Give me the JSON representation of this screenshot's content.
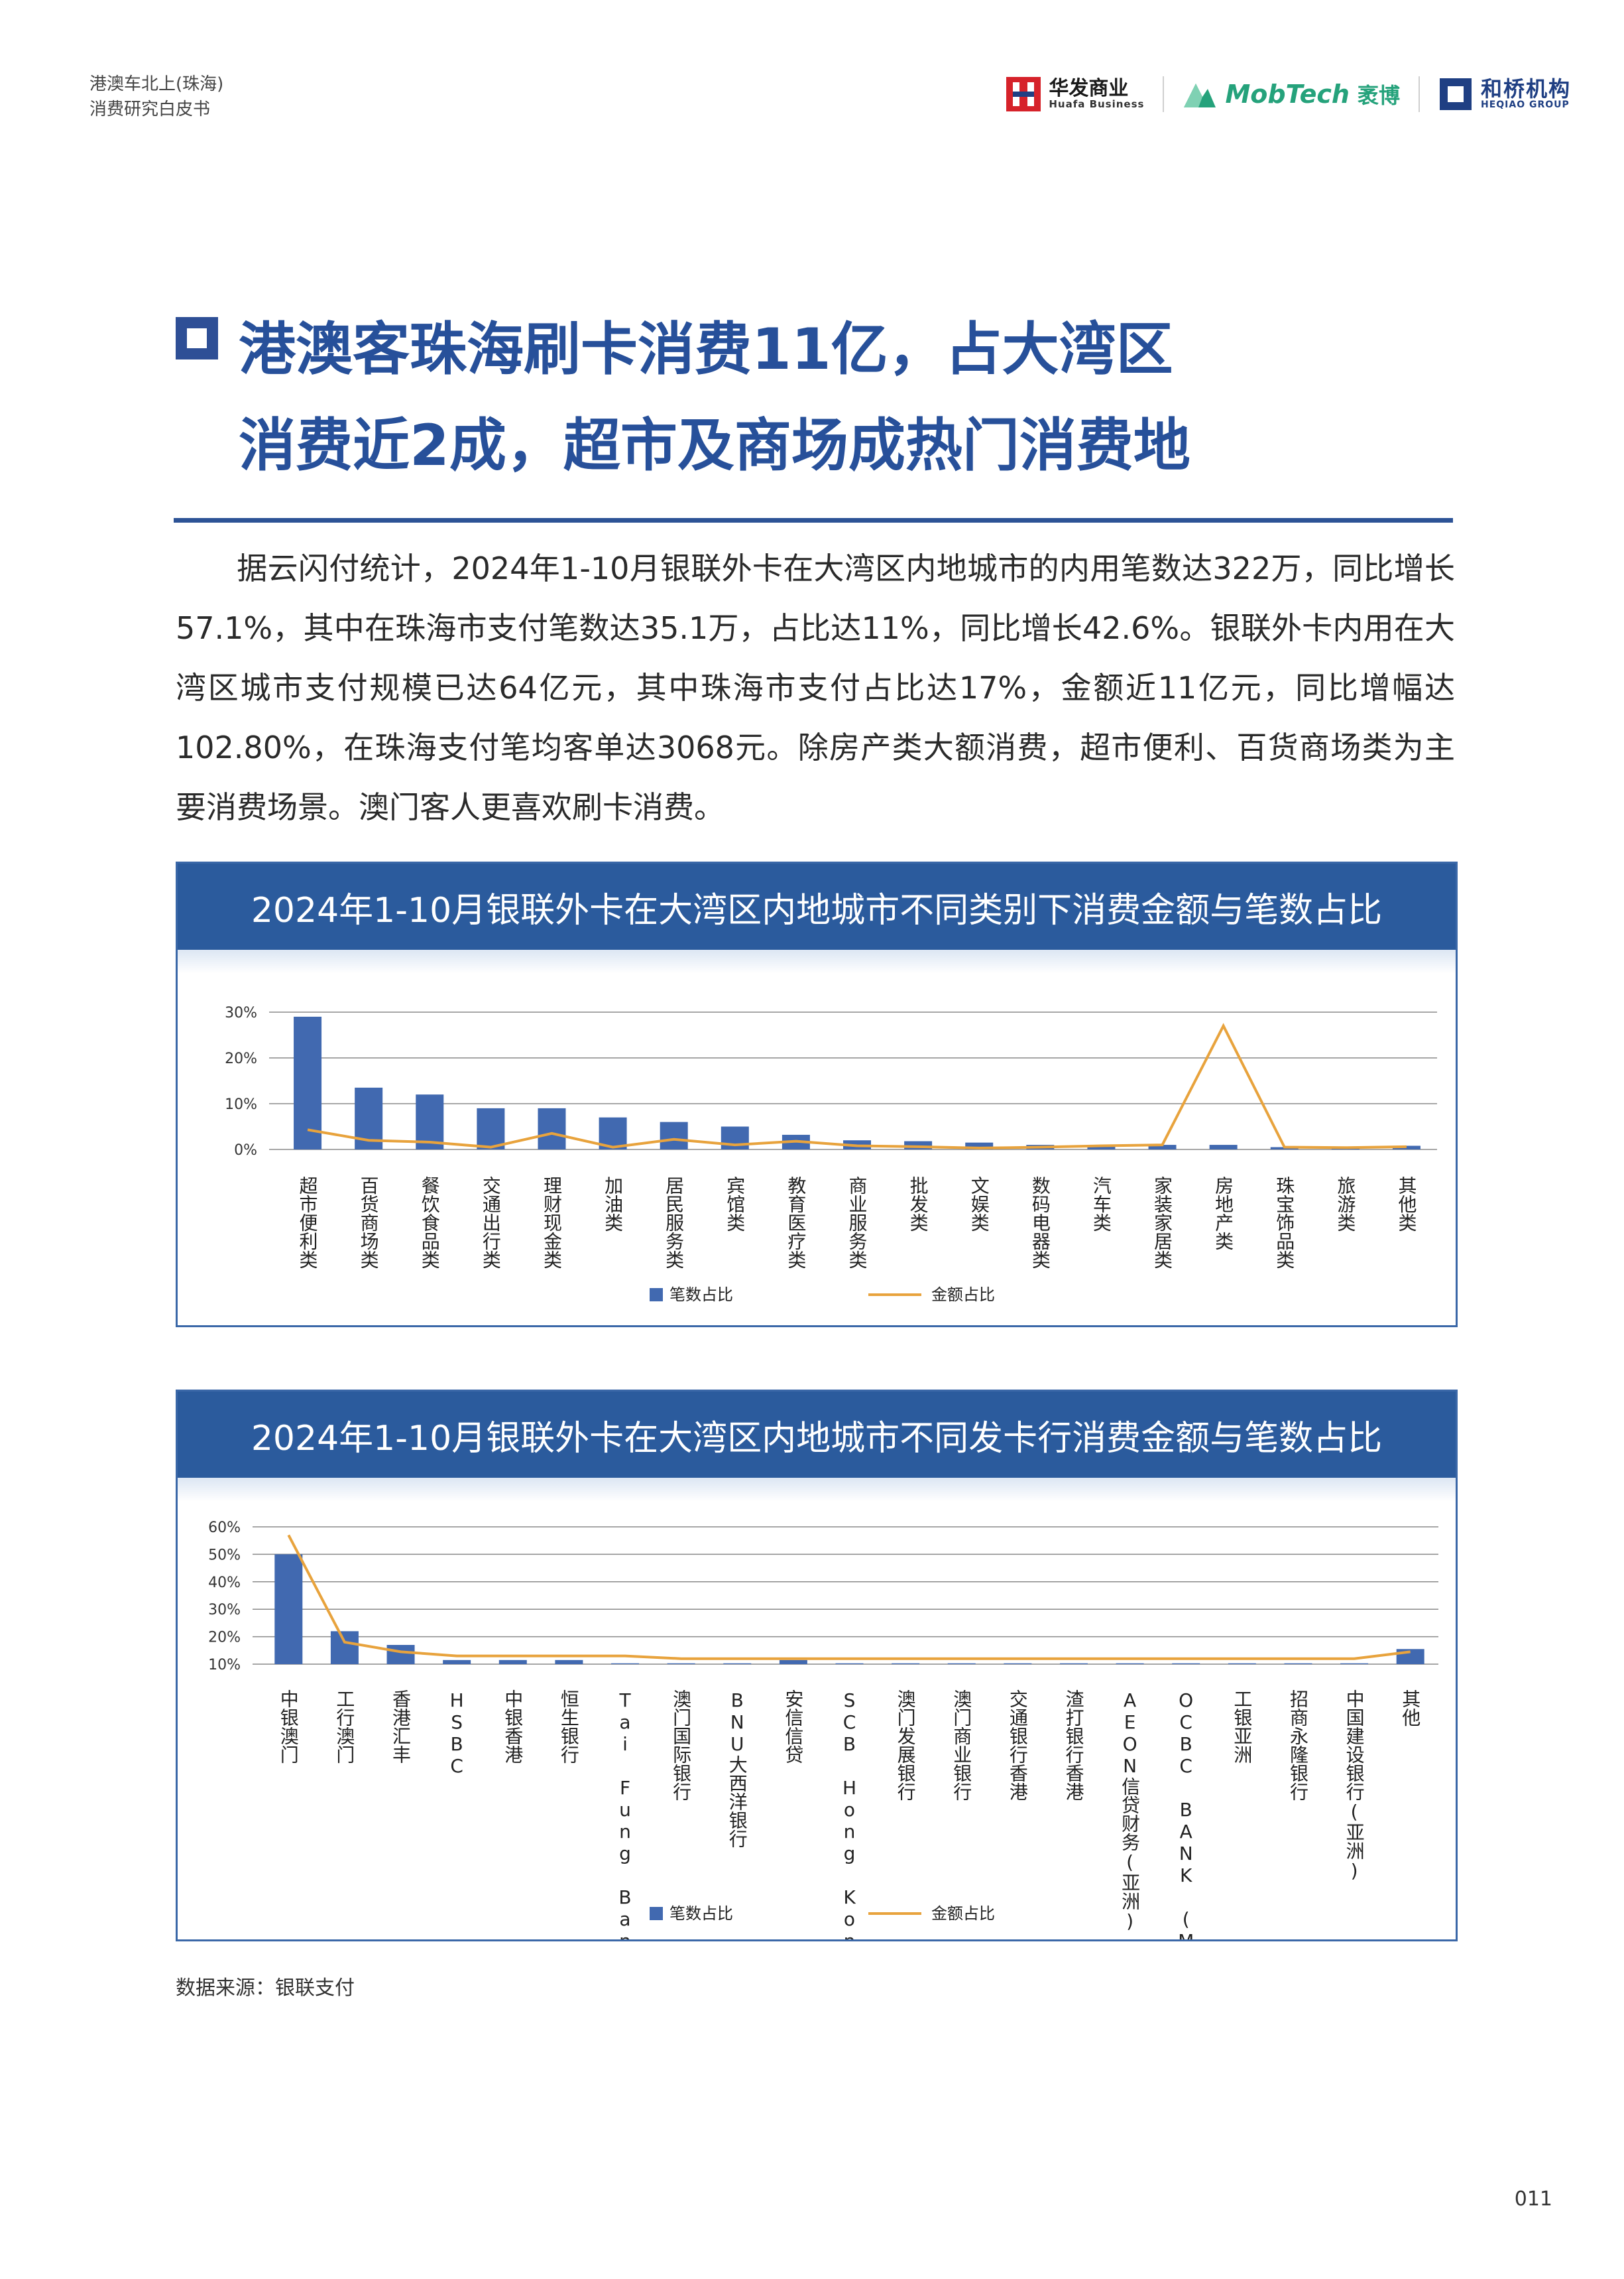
{
  "header": {
    "line1": "港澳车北上(珠海)",
    "line2": "消费研究白皮书",
    "logos": {
      "huafa_cn": "华发商业",
      "huafa_en": "Huafa Business",
      "mobtech": "MobTech",
      "mobtech_cn": "袤博",
      "heqiao_cn": "和桥机构",
      "heqiao_en": "HEQIAO GROUP"
    }
  },
  "title": {
    "line1": "港澳客珠海刷卡消费11亿，占大湾区",
    "line2": "消费近2成，超市及商场成热门消费地"
  },
  "paragraph": "据云闪付统计，2024年1-10月银联外卡在大湾区内地城市的内用笔数达322万，同比增长57.1%，其中在珠海市支付笔数达35.1万，占比达11%，同比增长42.6%。银联外卡内用在大湾区城市支付规模已达64亿元，其中珠海市支付占比达17%，金额近11亿元，同比增幅达102.80%，在珠海支付笔均客单达3068元。除房产类大额消费，超市便利、百货商场类为主要消费场景。澳门客人更喜欢刷卡消费。",
  "colors": {
    "bar": "#4169b0",
    "line": "#e8a33d",
    "header": "#2b5b9d",
    "title": "#27509a"
  },
  "chart_data": [
    {
      "type": "bar",
      "title": "2024年1-10月银联外卡在大湾区内地城市不同类别下消费金额与笔数占比",
      "categories": [
        "超市便利类",
        "百货商场类",
        "餐饮食品类",
        "交通出行类",
        "理财现金类",
        "加油类",
        "居民服务类",
        "宾馆类",
        "教育医疗类",
        "商业服务类",
        "批发类",
        "文娱类",
        "数码电器类",
        "汽车类",
        "家装家居类",
        "房地产类",
        "珠宝饰品类",
        "旅游类",
        "其他类"
      ],
      "series": [
        {
          "name": "笔数占比",
          "kind": "bar",
          "values": [
            29,
            13.5,
            12,
            9,
            9,
            7,
            6,
            5,
            3.2,
            2,
            1.8,
            1.5,
            1,
            1,
            1,
            1,
            0.5,
            0.5,
            0.8
          ]
        },
        {
          "name": "金额占比",
          "kind": "line",
          "values": [
            4.3,
            2,
            1.6,
            0.5,
            3.5,
            0.5,
            2.2,
            1,
            1.8,
            0.8,
            0.6,
            0.3,
            0.5,
            0.8,
            1,
            27,
            0.5,
            0.4,
            0.6
          ]
        }
      ],
      "y_ticks": [
        "0%",
        "10%",
        "20%",
        "30%"
      ],
      "ylim": [
        0,
        30
      ],
      "grid": true,
      "legend_position": "bottom"
    },
    {
      "type": "bar",
      "title": "2024年1-10月银联外卡在大湾区内地城市不同发卡行消费金额与笔数占比",
      "categories": [
        "中银澳门",
        "工行澳门",
        "香港汇丰",
        "HSBC",
        "中银香港",
        "恒生银行",
        "Tai Fung Bank Limited",
        "澳门国际银行",
        "BNU大西洋银行",
        "安信信贷",
        "SCB Hong Kong Limited",
        "澳门发展银行",
        "澳门商业银行",
        "交通银行香港",
        "渣打银行香港",
        "AEON信贷财务(亚洲)",
        "OCBC BANK (MACAU) LIMITED",
        "工银亚洲",
        "招商永隆银行",
        "中国建设银行(亚洲)",
        "其他"
      ],
      "series": [
        {
          "name": "笔数占比",
          "kind": "bar",
          "values": [
            50,
            22,
            17,
            11.5,
            11.5,
            11.5,
            10.3,
            10.3,
            10.3,
            11.5,
            10.3,
            10.3,
            10.3,
            10.3,
            10.3,
            10.3,
            10.3,
            10.3,
            10.3,
            10.3,
            15.5
          ]
        },
        {
          "name": "金额占比",
          "kind": "line",
          "values": [
            57,
            18,
            14.5,
            13,
            13,
            13,
            13,
            12,
            12,
            12,
            12,
            12,
            12,
            12,
            12,
            12,
            12,
            12,
            12,
            12,
            14.5
          ]
        }
      ],
      "y_ticks": [
        "10%",
        "20%",
        "30%",
        "40%",
        "50%",
        "60%"
      ],
      "ylim": [
        10,
        60
      ],
      "grid": true,
      "legend_position": "bottom"
    }
  ],
  "legend": {
    "bar_label": "笔数占比",
    "line_label": "金额占比"
  },
  "source": "数据来源：银联支付",
  "page_number": "011"
}
